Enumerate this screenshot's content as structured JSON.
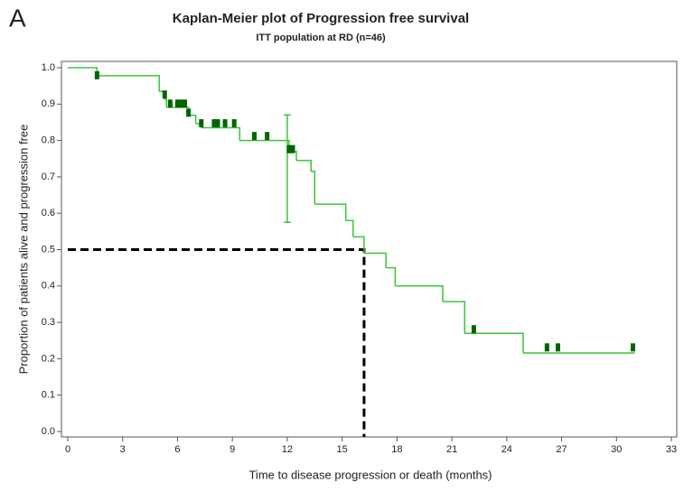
{
  "panel_label": "A",
  "chart_data": {
    "type": "km",
    "title": "Kaplan-Meier plot of Progression free survival",
    "subtitle": "ITT population at RD (n=46)",
    "xlabel": "Time to disease progression or death (months)",
    "ylabel": "Proportion of patients alive and progression free",
    "xlim": [
      0,
      33
    ],
    "ylim": [
      0,
      1
    ],
    "xticks": [
      0,
      3,
      6,
      9,
      12,
      15,
      18,
      21,
      24,
      27,
      30,
      33
    ],
    "yticks": [
      {
        "value": 0,
        "label": "0.0"
      },
      0.1,
      0.2,
      0.3,
      0.4,
      0.5,
      0.6,
      0.7,
      0.8,
      0.9,
      {
        "value": 1,
        "label": "1.0"
      }
    ],
    "color": "#3cc43c",
    "censor_color": "#006400",
    "x": [
      0,
      1.6,
      5.0,
      5.3,
      5.4,
      6.6,
      7.0,
      7.3,
      9.4,
      12.1,
      12.5,
      13.3,
      13.5,
      15.2,
      15.6,
      16.2,
      17.4,
      17.9,
      20.5,
      21.7,
      24.9,
      31.0
    ],
    "values": [
      1.0,
      0.978,
      0.935,
      0.913,
      0.891,
      0.869,
      0.846,
      0.835,
      0.8,
      0.77,
      0.745,
      0.715,
      0.625,
      0.58,
      0.535,
      0.49,
      0.45,
      0.4,
      0.357,
      0.27,
      0.216,
      0.216
    ],
    "censor_x": [
      1.6,
      5.3,
      5.6,
      6.0,
      6.2,
      6.4,
      6.6,
      7.3,
      8.0,
      8.2,
      8.6,
      9.1,
      10.2,
      10.9,
      12.1,
      12.3,
      22.2,
      26.2,
      26.8,
      30.9
    ],
    "censor_y": [
      0.978,
      0.925,
      0.9,
      0.9,
      0.9,
      0.9,
      0.875,
      0.846,
      0.846,
      0.846,
      0.846,
      0.846,
      0.811,
      0.811,
      0.775,
      0.775,
      0.28,
      0.23,
      0.23,
      0.23
    ],
    "ci": {
      "x": 12.0,
      "lower": 0.575,
      "upper": 0.87
    },
    "median": {
      "x": 16.2,
      "y": 0.5
    }
  }
}
